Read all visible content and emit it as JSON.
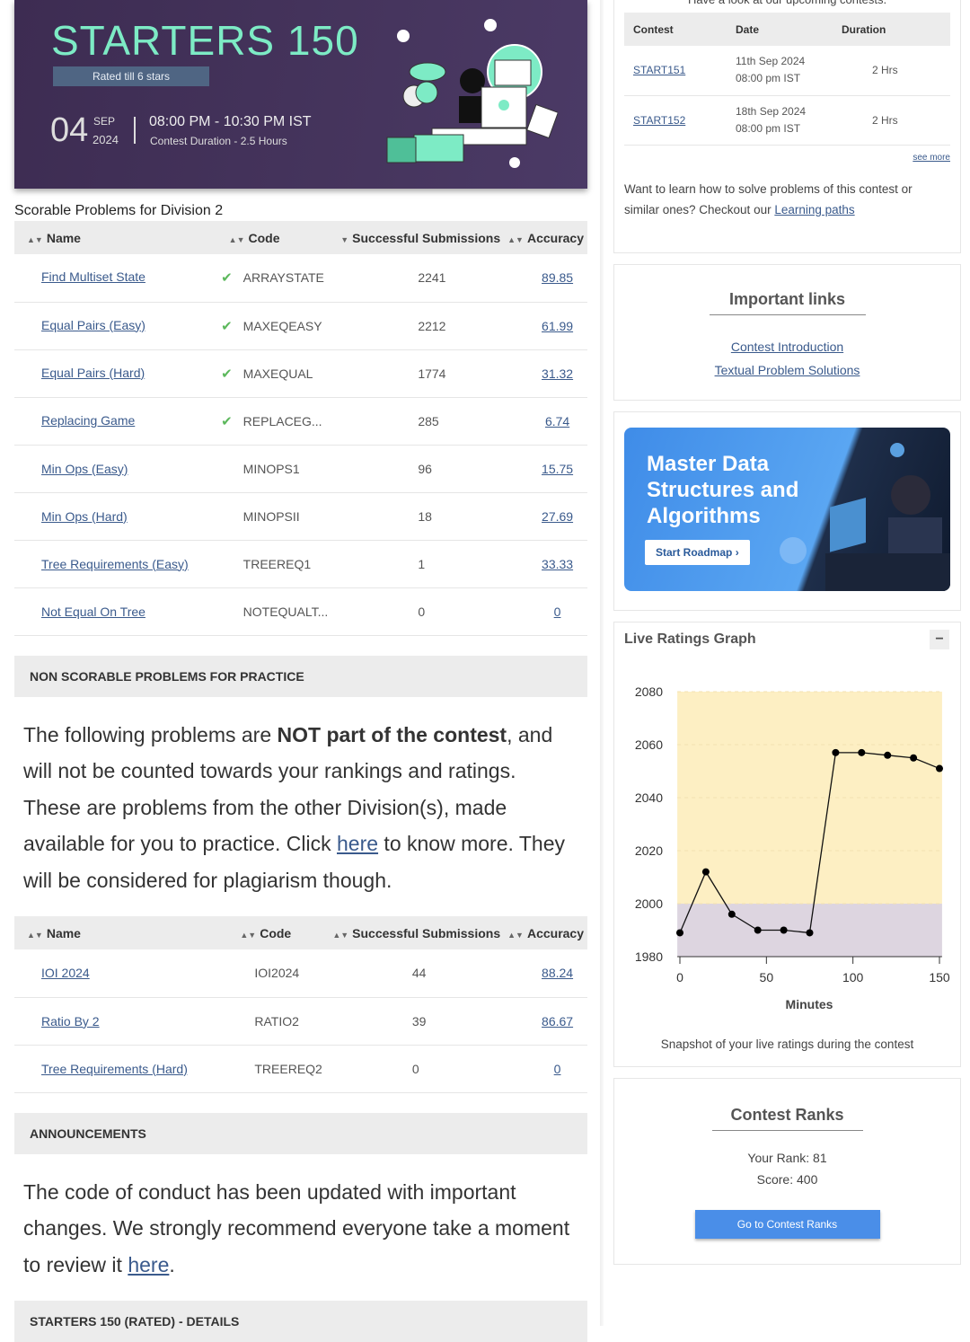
{
  "banner": {
    "title": "STARTERS 150",
    "rated": "Rated till 6 stars",
    "day": "04",
    "month": "SEP",
    "year": "2024",
    "time": "08:00 PM - 10:30 PM IST",
    "duration": "Contest Duration - 2.5  Hours"
  },
  "scorable": {
    "heading": "Scorable Problems for Division 2",
    "headers": [
      "Name",
      "Code",
      "Successful Submissions",
      "Accuracy"
    ],
    "rows": [
      {
        "name": "Find Multiset State",
        "solved": true,
        "code": "ARRAYSTATE",
        "subs": "2241",
        "acc": "89.85"
      },
      {
        "name": "Equal Pairs (Easy)",
        "solved": true,
        "code": "MAXEQEASY",
        "subs": "2212",
        "acc": "61.99"
      },
      {
        "name": "Equal Pairs (Hard)",
        "solved": true,
        "code": "MAXEQUAL",
        "subs": "1774",
        "acc": "31.32"
      },
      {
        "name": "Replacing Game",
        "solved": true,
        "code": "REPLACEG...",
        "subs": "285",
        "acc": "6.74"
      },
      {
        "name": "Min Ops (Easy)",
        "solved": false,
        "code": "MINOPS1",
        "subs": "96",
        "acc": "15.75"
      },
      {
        "name": "Min Ops (Hard)",
        "solved": false,
        "code": "MINOPSII",
        "subs": "18",
        "acc": "27.69"
      },
      {
        "name": "Tree Requirements (Easy)",
        "solved": false,
        "code": "TREEREQ1",
        "subs": "1",
        "acc": "33.33"
      },
      {
        "name": "Not Equal On Tree",
        "solved": false,
        "code": "NOTEQUALT...",
        "subs": "0",
        "acc": "0"
      }
    ]
  },
  "nonscorable": {
    "heading": "NON SCORABLE PROBLEMS FOR PRACTICE",
    "text1": "The following problems are ",
    "bold": "NOT part of the contest",
    "text2": ", and will not be counted towards your rankings and ratings. These are problems from the other Division(s), made available for you to practice. Click ",
    "link": "here",
    "text3": " to know more. They will be considered for plagiarism though.",
    "headers": [
      "Name",
      "Code",
      "Successful Submissions",
      "Accuracy"
    ],
    "rows": [
      {
        "name": "IOI 2024",
        "code": "IOI2024",
        "subs": "44",
        "acc": "88.24"
      },
      {
        "name": "Ratio By 2",
        "code": "RATIO2",
        "subs": "39",
        "acc": "86.67"
      },
      {
        "name": "Tree Requirements (Hard)",
        "code": "TREEREQ2",
        "subs": "0",
        "acc": "0"
      }
    ]
  },
  "announcements": {
    "heading": "ANNOUNCEMENTS",
    "text": "The code of conduct has been updated with important changes. We strongly recommend everyone take a moment to review it ",
    "link": "here",
    "end": "."
  },
  "next_heading": "STARTERS 150 (RATED) - DETAILS",
  "upcoming": {
    "intro": "Have a look at our upcoming contests.",
    "headers": [
      "Contest",
      "Date",
      "Duration"
    ],
    "rows": [
      {
        "code": "START151",
        "date": "11th Sep 2024",
        "time": "08:00 pm IST",
        "dur": "2 Hrs"
      },
      {
        "code": "START152",
        "date": "18th Sep 2024",
        "time": "08:00 pm IST",
        "dur": "2 Hrs"
      }
    ],
    "see_more": "see more",
    "learn": "Want to learn how to solve problems of this contest or similar ones? Checkout our ",
    "learn_link": "Learning paths"
  },
  "links": {
    "title": "Important links",
    "items": [
      "Contest Introduction",
      "Textual Problem Solutions"
    ]
  },
  "promo": {
    "title": "Master Data Structures and Algorithms",
    "button": "Start Roadmap"
  },
  "graph": {
    "title": "Live Ratings Graph",
    "collapse": "−",
    "caption": "Snapshot of your live ratings during the contest"
  },
  "chart_data": {
    "type": "line",
    "title": "Live Ratings Graph",
    "xlabel": "Minutes",
    "ylabel": "",
    "xlim": [
      0,
      150
    ],
    "ylim": [
      1980,
      2080
    ],
    "xticks": [
      "0",
      "50",
      "100",
      "150"
    ],
    "yticks": [
      "2080",
      "2060",
      "2040",
      "2020",
      "2000",
      "1980"
    ],
    "x": [
      0,
      15,
      30,
      45,
      60,
      75,
      90,
      105,
      120,
      135,
      150
    ],
    "y": [
      1989,
      2012,
      1996,
      1990,
      1990,
      1989,
      2057,
      2057,
      2056,
      2055,
      2051
    ],
    "bands": [
      {
        "from": 1980,
        "to": 2000,
        "color": "#ddd5e0"
      },
      {
        "from": 2000,
        "to": 2080,
        "color": "#fdefc3"
      }
    ]
  },
  "ranks": {
    "title": "Contest Ranks",
    "rank": "Your Rank: 81",
    "score": "Score: 400",
    "button": "Go to Contest Ranks"
  }
}
